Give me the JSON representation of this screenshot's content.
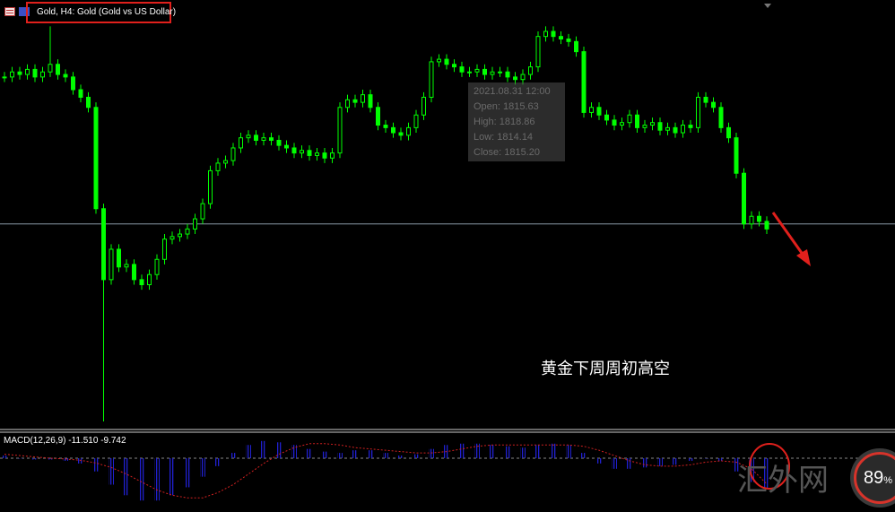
{
  "header": {
    "title": "Gold, H4:  Gold (Gold vs US Dollar)"
  },
  "tooltip": {
    "date": "2021.08.31 12:00",
    "open": "Open: 1815.63",
    "high": "High: 1818.86",
    "low": "Low: 1814.14",
    "close": "Close: 1815.20"
  },
  "annotation": {
    "text": "黄金下周周初高空",
    "watermark": "汇外网",
    "badge_value": "89",
    "badge_unit": "%"
  },
  "colors": {
    "candle": "#00ff00",
    "background": "#000000",
    "macd_hist": "#2020d0",
    "signal": "#d02020",
    "annotation": "#e0201c"
  },
  "chart_data": [
    {
      "type": "candlestick",
      "symbol": "Gold",
      "timeframe": "H4",
      "closes": [
        1820,
        1822,
        1821,
        1823,
        1820,
        1822,
        1825,
        1821,
        1820,
        1815,
        1812,
        1808,
        1768,
        1740,
        1752,
        1745,
        1746,
        1740,
        1738,
        1742,
        1748,
        1756,
        1757,
        1758,
        1760,
        1764,
        1770,
        1783,
        1786,
        1787,
        1792,
        1796,
        1797,
        1795,
        1796,
        1795,
        1793,
        1792,
        1790,
        1791,
        1789,
        1790,
        1788,
        1790,
        1808,
        1811,
        1810,
        1813,
        1808,
        1801,
        1800,
        1798,
        1797,
        1800,
        1805,
        1812,
        1826,
        1827,
        1825,
        1824,
        1822,
        1822,
        1823,
        1821,
        1822,
        1822,
        1820,
        1819,
        1821,
        1824,
        1836,
        1838,
        1836,
        1835,
        1834,
        1830,
        1806,
        1808,
        1805,
        1803,
        1801,
        1802,
        1805,
        1800,
        1801,
        1802,
        1799,
        1800,
        1798,
        1801,
        1800,
        1812,
        1810,
        1808,
        1800,
        1796,
        1782,
        1762,
        1765,
        1763,
        1760
      ],
      "wick_extremes": [
        {
          "index": 6,
          "high": 1840
        },
        {
          "index": 13,
          "low": 1684
        }
      ],
      "horizontal_line": 1762
    },
    {
      "type": "bar",
      "title": "MACD(12,26,9) -11.510 -9.742",
      "macd": [
        1,
        0,
        -0.5,
        -0.5,
        -1,
        -2,
        -5,
        -10,
        -14,
        -16,
        -16,
        -14,
        -11,
        -7,
        -3,
        2,
        5,
        6.5,
        6,
        5,
        3.5,
        2.5,
        2,
        3,
        3,
        2,
        1,
        1.5,
        3.5,
        5,
        5.5,
        5.5,
        5,
        4.5,
        4,
        5,
        5.5,
        5,
        2,
        -2,
        -4,
        -4,
        -3.5,
        -3,
        -2.5,
        -1,
        0,
        -1,
        -5,
        -9,
        -11.51
      ],
      "signal": [
        1.5,
        1,
        0.5,
        0,
        -0.3,
        -0.8,
        -1.8,
        -3.5,
        -6,
        -9,
        -12,
        -14,
        -15,
        -15,
        -13,
        -10,
        -6,
        -2,
        1.5,
        4,
        5.5,
        5.5,
        5,
        4,
        3.5,
        3,
        2.5,
        2,
        2,
        2.5,
        3.5,
        4.5,
        5,
        5,
        5,
        5,
        5,
        5,
        4.5,
        3,
        1,
        -1,
        -2.5,
        -3,
        -3,
        -2.5,
        -1.5,
        -1,
        -1.5,
        -4,
        -9.742
      ]
    }
  ]
}
